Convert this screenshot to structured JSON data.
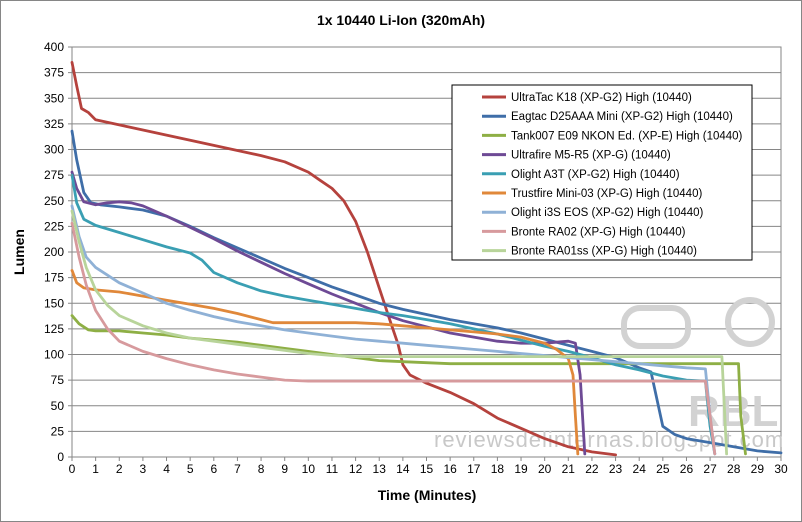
{
  "chart_data": {
    "type": "line",
    "title": "1x 10440 Li-Ion (320mAh)",
    "xlabel": "Time (Minutes)",
    "ylabel": "Lumen",
    "xlim": [
      0,
      30
    ],
    "ylim": [
      0,
      400
    ],
    "xticks": [
      0,
      1,
      2,
      3,
      4,
      5,
      6,
      7,
      8,
      9,
      10,
      11,
      12,
      13,
      14,
      15,
      16,
      17,
      18,
      19,
      20,
      21,
      22,
      23,
      24,
      25,
      26,
      27,
      28,
      29,
      30
    ],
    "yticks": [
      0,
      25,
      50,
      75,
      100,
      125,
      150,
      175,
      200,
      225,
      250,
      275,
      300,
      325,
      350,
      375,
      400
    ],
    "grid": "horizontal",
    "legend_position": "top-right",
    "series": [
      {
        "name": "UltraTac K18 (XP-G2) High (10440)",
        "color": "#b5423d",
        "points": [
          [
            0,
            385
          ],
          [
            0.2,
            362
          ],
          [
            0.4,
            340
          ],
          [
            0.7,
            336
          ],
          [
            1,
            329
          ],
          [
            2,
            324
          ],
          [
            3,
            319
          ],
          [
            4,
            314
          ],
          [
            5,
            309
          ],
          [
            6,
            304
          ],
          [
            7,
            299
          ],
          [
            8,
            294
          ],
          [
            9,
            288
          ],
          [
            10,
            278
          ],
          [
            10.5,
            270
          ],
          [
            11,
            262
          ],
          [
            11.5,
            250
          ],
          [
            12,
            230
          ],
          [
            12.5,
            200
          ],
          [
            13,
            165
          ],
          [
            13.5,
            130
          ],
          [
            13.8,
            110
          ],
          [
            14,
            90
          ],
          [
            14.3,
            80
          ],
          [
            15,
            72
          ],
          [
            16,
            63
          ],
          [
            17,
            52
          ],
          [
            18,
            38
          ],
          [
            19,
            28
          ],
          [
            20,
            18
          ],
          [
            21,
            10
          ],
          [
            22,
            5
          ],
          [
            23,
            2
          ]
        ]
      },
      {
        "name": "Eagtac D25AAA Mini (XP-G2) High (10440)",
        "color": "#3f6ea8",
        "points": [
          [
            0,
            318
          ],
          [
            0.2,
            290
          ],
          [
            0.5,
            258
          ],
          [
            0.8,
            248
          ],
          [
            1.2,
            246
          ],
          [
            2,
            244
          ],
          [
            3,
            241
          ],
          [
            4,
            235
          ],
          [
            5,
            225
          ],
          [
            6,
            214
          ],
          [
            7,
            204
          ],
          [
            8,
            194
          ],
          [
            9,
            184
          ],
          [
            10,
            175
          ],
          [
            11,
            166
          ],
          [
            12,
            158
          ],
          [
            13,
            150
          ],
          [
            14,
            144
          ],
          [
            15,
            139
          ],
          [
            16,
            134
          ],
          [
            17,
            130
          ],
          [
            18,
            126
          ],
          [
            19,
            121
          ],
          [
            20,
            115
          ],
          [
            21,
            109
          ],
          [
            22,
            103
          ],
          [
            23,
            97
          ],
          [
            24,
            87
          ],
          [
            24.5,
            83
          ],
          [
            25,
            30
          ],
          [
            25.5,
            22
          ],
          [
            26,
            18
          ],
          [
            27,
            14
          ],
          [
            28,
            10
          ],
          [
            29,
            6
          ],
          [
            30,
            4
          ]
        ]
      },
      {
        "name": "Tank007 E09 NKON Ed. (XP-E) High (10440)",
        "color": "#8eaf45",
        "points": [
          [
            0,
            138
          ],
          [
            0.3,
            130
          ],
          [
            0.7,
            124
          ],
          [
            1,
            123
          ],
          [
            2,
            123
          ],
          [
            3,
            121
          ],
          [
            4,
            119
          ],
          [
            5,
            116
          ],
          [
            6,
            114
          ],
          [
            7,
            112
          ],
          [
            8,
            109
          ],
          [
            9,
            106
          ],
          [
            10,
            103
          ],
          [
            11,
            100
          ],
          [
            12,
            97
          ],
          [
            13,
            94
          ],
          [
            14,
            93
          ],
          [
            15,
            92
          ],
          [
            16,
            91
          ],
          [
            17,
            91
          ],
          [
            18,
            91
          ],
          [
            19,
            91
          ],
          [
            20,
            91
          ],
          [
            21,
            91
          ],
          [
            22,
            91
          ],
          [
            23,
            91
          ],
          [
            24,
            91
          ],
          [
            25,
            91
          ],
          [
            26,
            91
          ],
          [
            27,
            91
          ],
          [
            28.2,
            91
          ],
          [
            28.3,
            40
          ],
          [
            28.5,
            3
          ]
        ]
      },
      {
        "name": "Ultrafire M5-R5 (XP-G) (10440)",
        "color": "#6e4a95",
        "points": [
          [
            0,
            278
          ],
          [
            0.2,
            262
          ],
          [
            0.5,
            249
          ],
          [
            1,
            246
          ],
          [
            1.5,
            248
          ],
          [
            2,
            249
          ],
          [
            2.5,
            248
          ],
          [
            3,
            245
          ],
          [
            4,
            235
          ],
          [
            5,
            224
          ],
          [
            6,
            213
          ],
          [
            7,
            201
          ],
          [
            8,
            190
          ],
          [
            9,
            179
          ],
          [
            10,
            169
          ],
          [
            11,
            159
          ],
          [
            12,
            150
          ],
          [
            13,
            141
          ],
          [
            14,
            133
          ],
          [
            15,
            127
          ],
          [
            16,
            121
          ],
          [
            17,
            117
          ],
          [
            18,
            113
          ],
          [
            19,
            111
          ],
          [
            20,
            111
          ],
          [
            21,
            113
          ],
          [
            21.3,
            111
          ],
          [
            21.5,
            80
          ],
          [
            21.7,
            3
          ]
        ]
      },
      {
        "name": "Olight A3T (XP-G2) High (10440)",
        "color": "#3a9fb3",
        "points": [
          [
            0,
            275
          ],
          [
            0.2,
            248
          ],
          [
            0.5,
            232
          ],
          [
            1,
            226
          ],
          [
            2,
            219
          ],
          [
            3,
            212
          ],
          [
            4,
            205
          ],
          [
            5,
            199
          ],
          [
            5.5,
            192
          ],
          [
            6,
            180
          ],
          [
            7,
            170
          ],
          [
            8,
            162
          ],
          [
            9,
            157
          ],
          [
            10,
            153
          ],
          [
            11,
            149
          ],
          [
            12,
            145
          ],
          [
            13,
            141
          ],
          [
            14,
            138
          ],
          [
            15,
            134
          ],
          [
            16,
            130
          ],
          [
            17,
            125
          ],
          [
            18,
            120
          ],
          [
            19,
            114
          ],
          [
            20,
            108
          ],
          [
            21,
            103
          ],
          [
            22,
            97
          ],
          [
            23,
            90
          ],
          [
            24,
            85
          ],
          [
            25,
            79
          ],
          [
            26,
            75
          ],
          [
            26.8,
            74
          ],
          [
            27,
            30
          ],
          [
            27.2,
            3
          ]
        ]
      },
      {
        "name": "Trustfire Mini-03 (XP-G) High (10440)",
        "color": "#e0883a",
        "points": [
          [
            0,
            182
          ],
          [
            0.2,
            170
          ],
          [
            0.5,
            165
          ],
          [
            1,
            163
          ],
          [
            2,
            161
          ],
          [
            3,
            157
          ],
          [
            4,
            153
          ],
          [
            5,
            149
          ],
          [
            6,
            145
          ],
          [
            7,
            140
          ],
          [
            8,
            134
          ],
          [
            8.5,
            131
          ],
          [
            9,
            131
          ],
          [
            10,
            131
          ],
          [
            11,
            131
          ],
          [
            12,
            131
          ],
          [
            13,
            130
          ],
          [
            14,
            128
          ],
          [
            15,
            126
          ],
          [
            16,
            124
          ],
          [
            17,
            122
          ],
          [
            18,
            120
          ],
          [
            19,
            117
          ],
          [
            20,
            111
          ],
          [
            20.5,
            105
          ],
          [
            21,
            96
          ],
          [
            21.2,
            80
          ],
          [
            21.3,
            40
          ],
          [
            21.4,
            3
          ]
        ]
      },
      {
        "name": "Olight i3S EOS (XP-G2) High (10440)",
        "color": "#8fb1d6",
        "points": [
          [
            0,
            245
          ],
          [
            0.3,
            215
          ],
          [
            0.6,
            195
          ],
          [
            1,
            185
          ],
          [
            2,
            170
          ],
          [
            3,
            160
          ],
          [
            4,
            150
          ],
          [
            5,
            143
          ],
          [
            6,
            137
          ],
          [
            7,
            132
          ],
          [
            8,
            128
          ],
          [
            9,
            124
          ],
          [
            10,
            121
          ],
          [
            11,
            118
          ],
          [
            12,
            115
          ],
          [
            13,
            113
          ],
          [
            14,
            111
          ],
          [
            15,
            109
          ],
          [
            16,
            107
          ],
          [
            17,
            105
          ],
          [
            18,
            103
          ],
          [
            19,
            101
          ],
          [
            20,
            99
          ],
          [
            21,
            97
          ],
          [
            22,
            95
          ],
          [
            23,
            93
          ],
          [
            24,
            91
          ],
          [
            25,
            89
          ],
          [
            26,
            87
          ],
          [
            26.8,
            86
          ],
          [
            27,
            40
          ],
          [
            27.2,
            3
          ]
        ]
      },
      {
        "name": "Bronte RA02 (XP-G) High (10440)",
        "color": "#d79a9d",
        "points": [
          [
            0,
            228
          ],
          [
            0.3,
            195
          ],
          [
            0.6,
            168
          ],
          [
            1,
            143
          ],
          [
            1.5,
            125
          ],
          [
            2,
            113
          ],
          [
            3,
            103
          ],
          [
            4,
            96
          ],
          [
            5,
            90
          ],
          [
            6,
            85
          ],
          [
            7,
            81
          ],
          [
            8,
            78
          ],
          [
            9,
            75
          ],
          [
            10,
            74
          ],
          [
            11,
            74
          ],
          [
            12,
            74
          ],
          [
            13,
            74
          ],
          [
            14,
            74
          ],
          [
            15,
            74
          ],
          [
            16,
            74
          ],
          [
            17,
            74
          ],
          [
            18,
            74
          ],
          [
            19,
            74
          ],
          [
            20,
            74
          ],
          [
            21,
            74
          ],
          [
            22,
            74
          ],
          [
            23,
            74
          ],
          [
            24,
            74
          ],
          [
            25,
            74
          ],
          [
            26,
            74
          ],
          [
            26.8,
            74
          ],
          [
            27,
            40
          ],
          [
            27.2,
            3
          ]
        ]
      },
      {
        "name": "Bronte RA01ss (XP-G) High (10440)",
        "color": "#b8d49a",
        "points": [
          [
            0,
            240
          ],
          [
            0.3,
            210
          ],
          [
            0.6,
            185
          ],
          [
            1,
            163
          ],
          [
            1.5,
            148
          ],
          [
            2,
            138
          ],
          [
            3,
            128
          ],
          [
            4,
            121
          ],
          [
            5,
            116
          ],
          [
            6,
            113
          ],
          [
            7,
            110
          ],
          [
            8,
            107
          ],
          [
            9,
            104
          ],
          [
            10,
            101
          ],
          [
            11,
            99
          ],
          [
            12,
            98
          ],
          [
            13,
            98
          ],
          [
            14,
            98
          ],
          [
            15,
            98
          ],
          [
            16,
            98
          ],
          [
            17,
            98
          ],
          [
            18,
            98
          ],
          [
            19,
            98
          ],
          [
            20,
            98
          ],
          [
            21,
            98
          ],
          [
            22,
            98
          ],
          [
            23,
            98
          ],
          [
            24,
            98
          ],
          [
            25,
            98
          ],
          [
            26,
            98
          ],
          [
            27,
            98
          ],
          [
            27.5,
            98
          ],
          [
            27.6,
            50
          ],
          [
            27.7,
            3
          ]
        ]
      }
    ]
  },
  "watermark": {
    "logo": "RBL",
    "text": "reviewsdelinternas.blogspot.com"
  }
}
